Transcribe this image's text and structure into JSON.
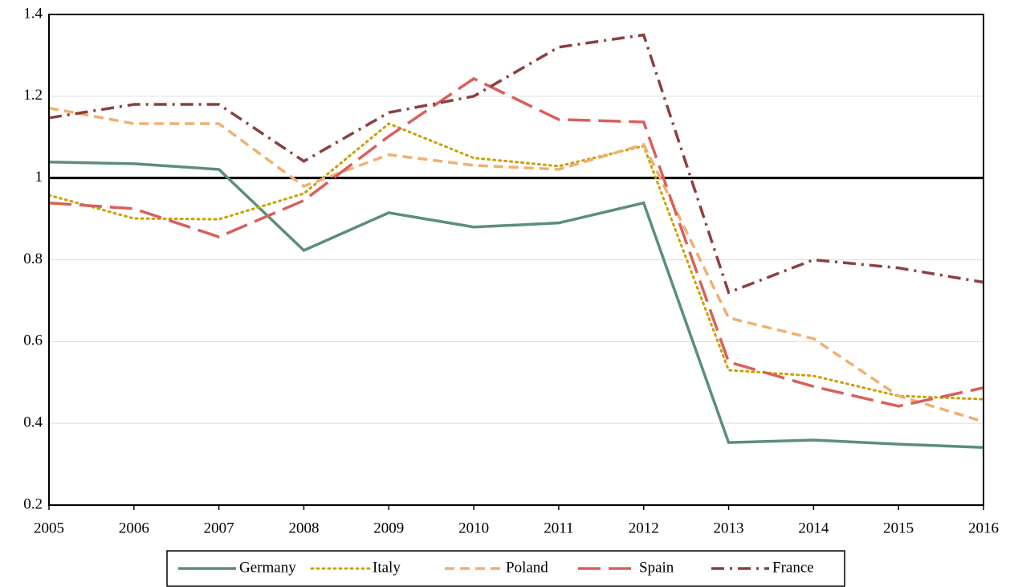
{
  "chart_data": {
    "type": "line",
    "x": [
      2005,
      2006,
      2007,
      2008,
      2009,
      2010,
      2011,
      2012,
      2013,
      2014,
      2015,
      2016
    ],
    "xlim": [
      2005,
      2016
    ],
    "xticks": [
      2005,
      2006,
      2007,
      2008,
      2009,
      2010,
      2011,
      2012,
      2013,
      2014,
      2015,
      2016
    ],
    "ylim": [
      0.2,
      1.4
    ],
    "yticks": [
      0.2,
      0.4,
      0.6,
      0.8,
      1,
      1.2,
      1.4
    ],
    "grid": true,
    "reference_line": 1,
    "legend": "bottom",
    "series": [
      {
        "name": "Germany",
        "color": "#5b8f77",
        "style": "solid",
        "values": [
          1.039,
          1.035,
          1.021,
          0.823,
          0.915,
          0.88,
          0.89,
          0.939,
          0.353,
          0.359,
          0.349,
          0.341
        ]
      },
      {
        "name": "Italy",
        "color": "#c9a000",
        "style": "dotted",
        "values": [
          0.958,
          0.901,
          0.899,
          0.962,
          1.133,
          1.049,
          1.029,
          1.078,
          0.53,
          0.516,
          0.467,
          0.459
        ]
      },
      {
        "name": "Poland",
        "color": "#f0b070",
        "style": "dashed",
        "values": [
          1.171,
          1.133,
          1.133,
          0.98,
          1.057,
          1.031,
          1.021,
          1.082,
          0.658,
          0.607,
          0.467,
          0.404
        ]
      },
      {
        "name": "Spain",
        "color": "#d9605a",
        "style": "longdash",
        "values": [
          0.939,
          0.925,
          0.856,
          0.945,
          1.102,
          1.243,
          1.143,
          1.137,
          0.55,
          0.49,
          0.442,
          0.487
        ]
      },
      {
        "name": "France",
        "color": "#8b4040",
        "style": "dashdot",
        "values": [
          1.147,
          1.18,
          1.18,
          1.041,
          1.16,
          1.2,
          1.32,
          1.35,
          0.72,
          0.8,
          0.78,
          0.745
        ]
      }
    ]
  }
}
